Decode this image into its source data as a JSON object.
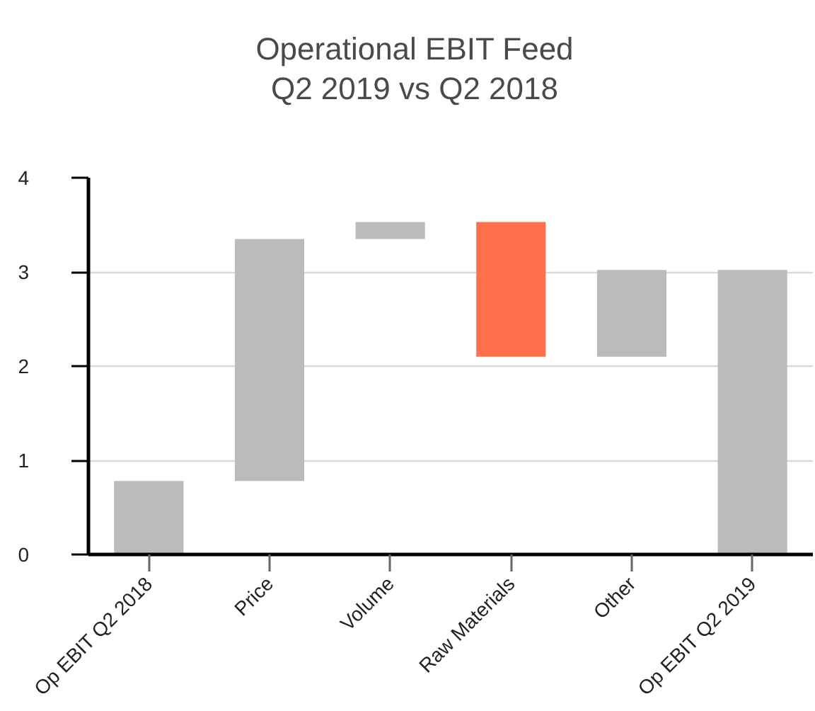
{
  "chart_data": {
    "type": "bar",
    "title": "Operational EBIT Feed",
    "subtitle": "Q2 2019 vs Q2 2018",
    "categories": [
      "Op EBIT Q2 2018",
      "Price",
      "Volume",
      "Raw Materials",
      "Other",
      "Op EBIT Q2 2019"
    ],
    "values": [
      0.78,
      2.57,
      0.18,
      -1.43,
      0.92,
      3.02
    ],
    "base": [
      0,
      0.78,
      3.35,
      3.53,
      2.1,
      0
    ],
    "colors": [
      "#bbbbbb",
      "#bbbbbb",
      "#bbbbbb",
      "#ff6f4a",
      "#bbbbbb",
      "#bbbbbb"
    ],
    "ylim": [
      0,
      4
    ],
    "yticks": [
      0,
      1,
      2,
      3,
      4
    ],
    "grid": "y"
  }
}
